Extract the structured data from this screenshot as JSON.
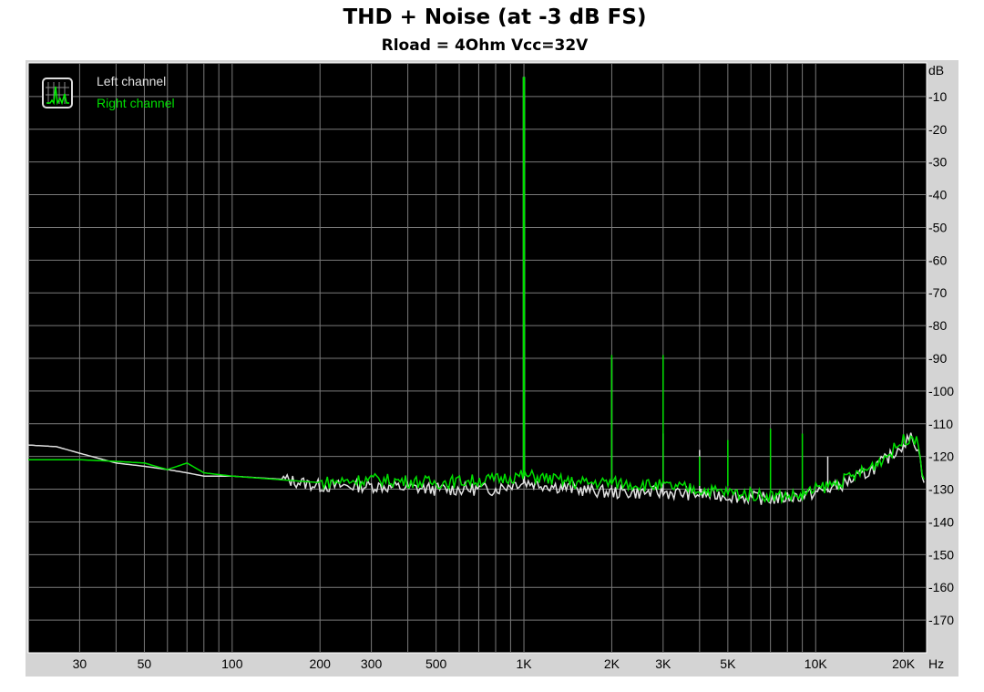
{
  "chart_data": {
    "type": "line",
    "title": "THD + Noise (at -3 dB FS)",
    "subtitle": "Rload = 4Ohm Vcc=32V",
    "xlabel": "Hz",
    "ylabel": "dB",
    "x_scale": "log",
    "xlim": [
      20,
      24000
    ],
    "ylim": [
      -180,
      0
    ],
    "grid": true,
    "legend_position": "top-left",
    "background": "#000000",
    "x_ticks": [
      {
        "v": 30,
        "label": "30"
      },
      {
        "v": 50,
        "label": "50"
      },
      {
        "v": 100,
        "label": "100"
      },
      {
        "v": 200,
        "label": "200"
      },
      {
        "v": 300,
        "label": "300"
      },
      {
        "v": 500,
        "label": "500"
      },
      {
        "v": 1000,
        "label": "1K"
      },
      {
        "v": 2000,
        "label": "2K"
      },
      {
        "v": 3000,
        "label": "3K"
      },
      {
        "v": 5000,
        "label": "5K"
      },
      {
        "v": 10000,
        "label": "10K"
      },
      {
        "v": 20000,
        "label": "20K"
      }
    ],
    "y_ticks": [
      {
        "v": -10,
        "label": "-10"
      },
      {
        "v": -20,
        "label": "-20"
      },
      {
        "v": -30,
        "label": "-30"
      },
      {
        "v": -40,
        "label": "-40"
      },
      {
        "v": -50,
        "label": "-50"
      },
      {
        "v": -60,
        "label": "-60"
      },
      {
        "v": -70,
        "label": "-70"
      },
      {
        "v": -80,
        "label": "-80"
      },
      {
        "v": -90,
        "label": "-90"
      },
      {
        "v": -100,
        "label": "-100"
      },
      {
        "v": -110,
        "label": "-110"
      },
      {
        "v": -120,
        "label": "-120"
      },
      {
        "v": -130,
        "label": "-130"
      },
      {
        "v": -140,
        "label": "-140"
      },
      {
        "v": -150,
        "label": "-150"
      },
      {
        "v": -160,
        "label": "-160"
      },
      {
        "v": -170,
        "label": "-170"
      }
    ],
    "series": [
      {
        "name": "Left channel",
        "color": "#e0e0e0",
        "floor": [
          [
            20,
            -116.5
          ],
          [
            25,
            -117
          ],
          [
            30,
            -119
          ],
          [
            40,
            -122
          ],
          [
            50,
            -123
          ],
          [
            60,
            -124
          ],
          [
            70,
            -125
          ],
          [
            80,
            -126
          ],
          [
            100,
            -126
          ],
          [
            150,
            -127
          ],
          [
            200,
            -129
          ],
          [
            300,
            -129
          ],
          [
            500,
            -130
          ],
          [
            800,
            -130
          ],
          [
            950,
            -128
          ],
          [
            1050,
            -128
          ],
          [
            1500,
            -130
          ],
          [
            2000,
            -131
          ],
          [
            3000,
            -131
          ],
          [
            5000,
            -132
          ],
          [
            7000,
            -133
          ],
          [
            9000,
            -132
          ],
          [
            10000,
            -131
          ],
          [
            12000,
            -129
          ],
          [
            15000,
            -125
          ],
          [
            18000,
            -120
          ],
          [
            20000,
            -116
          ],
          [
            21500,
            -114
          ],
          [
            22500,
            -118
          ],
          [
            23500,
            -128
          ]
        ],
        "peaks": [
          [
            1000,
            -4
          ],
          [
            2000,
            -90
          ],
          [
            3000,
            -113
          ],
          [
            4000,
            -118
          ],
          [
            11000,
            -120
          ]
        ]
      },
      {
        "name": "Right channel",
        "color": "#00e000",
        "floor": [
          [
            20,
            -121
          ],
          [
            30,
            -121
          ],
          [
            40,
            -121.5
          ],
          [
            50,
            -122
          ],
          [
            60,
            -124
          ],
          [
            70,
            -122
          ],
          [
            80,
            -125
          ],
          [
            100,
            -126
          ],
          [
            200,
            -128
          ],
          [
            300,
            -127
          ],
          [
            500,
            -128
          ],
          [
            800,
            -127
          ],
          [
            950,
            -126
          ],
          [
            1050,
            -126
          ],
          [
            1500,
            -128
          ],
          [
            2000,
            -128
          ],
          [
            3000,
            -129
          ],
          [
            5000,
            -131
          ],
          [
            7000,
            -132
          ],
          [
            9000,
            -132
          ],
          [
            10000,
            -130
          ],
          [
            12000,
            -128
          ],
          [
            15000,
            -124
          ],
          [
            18000,
            -119
          ],
          [
            20000,
            -115
          ],
          [
            21500,
            -113.5
          ],
          [
            22500,
            -117
          ],
          [
            23500,
            -127
          ]
        ],
        "peaks": [
          [
            1000,
            -4
          ],
          [
            2000,
            -89
          ],
          [
            3000,
            -89
          ],
          [
            4000,
            -120
          ],
          [
            5000,
            -115
          ],
          [
            7000,
            -111.5
          ],
          [
            9000,
            -113
          ]
        ]
      }
    ]
  }
}
